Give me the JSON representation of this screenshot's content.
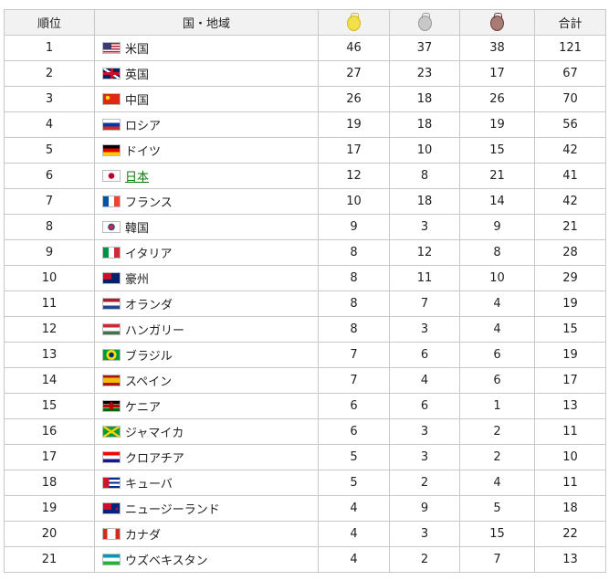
{
  "header": {
    "rank": "順位",
    "country": "国・地域",
    "gold_icon": "gold-medal-icon",
    "silver_icon": "silver-medal-icon",
    "bronze_icon": "bronze-medal-icon",
    "total": "合計"
  },
  "colors": {
    "gold": "#f2e04a",
    "silver": "#c8c8c8",
    "bronze": "#a87b74",
    "link": "#0b7a0b",
    "header_bg": "#f2f2f2"
  },
  "rows": [
    {
      "rank": "1",
      "flag": "us",
      "name": "米国",
      "gold": "46",
      "silver": "37",
      "bronze": "38",
      "total": "121"
    },
    {
      "rank": "2",
      "flag": "gb",
      "name": "英国",
      "gold": "27",
      "silver": "23",
      "bronze": "17",
      "total": "67"
    },
    {
      "rank": "3",
      "flag": "cn",
      "name": "中国",
      "gold": "26",
      "silver": "18",
      "bronze": "26",
      "total": "70"
    },
    {
      "rank": "4",
      "flag": "ru",
      "name": "ロシア",
      "gold": "19",
      "silver": "18",
      "bronze": "19",
      "total": "56"
    },
    {
      "rank": "5",
      "flag": "de",
      "name": "ドイツ",
      "gold": "17",
      "silver": "10",
      "bronze": "15",
      "total": "42"
    },
    {
      "rank": "6",
      "flag": "jp",
      "name": "日本",
      "gold": "12",
      "silver": "8",
      "bronze": "21",
      "total": "41",
      "link": true
    },
    {
      "rank": "7",
      "flag": "fr",
      "name": "フランス",
      "gold": "10",
      "silver": "18",
      "bronze": "14",
      "total": "42"
    },
    {
      "rank": "8",
      "flag": "kr",
      "name": "韓国",
      "gold": "9",
      "silver": "3",
      "bronze": "9",
      "total": "21"
    },
    {
      "rank": "9",
      "flag": "it",
      "name": "イタリア",
      "gold": "8",
      "silver": "12",
      "bronze": "8",
      "total": "28"
    },
    {
      "rank": "10",
      "flag": "au",
      "name": "豪州",
      "gold": "8",
      "silver": "11",
      "bronze": "10",
      "total": "29"
    },
    {
      "rank": "11",
      "flag": "nl",
      "name": "オランダ",
      "gold": "8",
      "silver": "7",
      "bronze": "4",
      "total": "19"
    },
    {
      "rank": "12",
      "flag": "hu",
      "name": "ハンガリー",
      "gold": "8",
      "silver": "3",
      "bronze": "4",
      "total": "15"
    },
    {
      "rank": "13",
      "flag": "br",
      "name": "ブラジル",
      "gold": "7",
      "silver": "6",
      "bronze": "6",
      "total": "19"
    },
    {
      "rank": "14",
      "flag": "es",
      "name": "スペイン",
      "gold": "7",
      "silver": "4",
      "bronze": "6",
      "total": "17"
    },
    {
      "rank": "15",
      "flag": "ke",
      "name": "ケニア",
      "gold": "6",
      "silver": "6",
      "bronze": "1",
      "total": "13"
    },
    {
      "rank": "16",
      "flag": "jm",
      "name": "ジャマイカ",
      "gold": "6",
      "silver": "3",
      "bronze": "2",
      "total": "11"
    },
    {
      "rank": "17",
      "flag": "hr",
      "name": "クロアチア",
      "gold": "5",
      "silver": "3",
      "bronze": "2",
      "total": "10"
    },
    {
      "rank": "18",
      "flag": "cu",
      "name": "キューバ",
      "gold": "5",
      "silver": "2",
      "bronze": "4",
      "total": "11"
    },
    {
      "rank": "19",
      "flag": "nz",
      "name": "ニュージーランド",
      "gold": "4",
      "silver": "9",
      "bronze": "5",
      "total": "18"
    },
    {
      "rank": "20",
      "flag": "ca",
      "name": "カナダ",
      "gold": "4",
      "silver": "3",
      "bronze": "15",
      "total": "22"
    },
    {
      "rank": "21",
      "flag": "uz",
      "name": "ウズベキスタン",
      "gold": "4",
      "silver": "2",
      "bronze": "7",
      "total": "13"
    }
  ]
}
